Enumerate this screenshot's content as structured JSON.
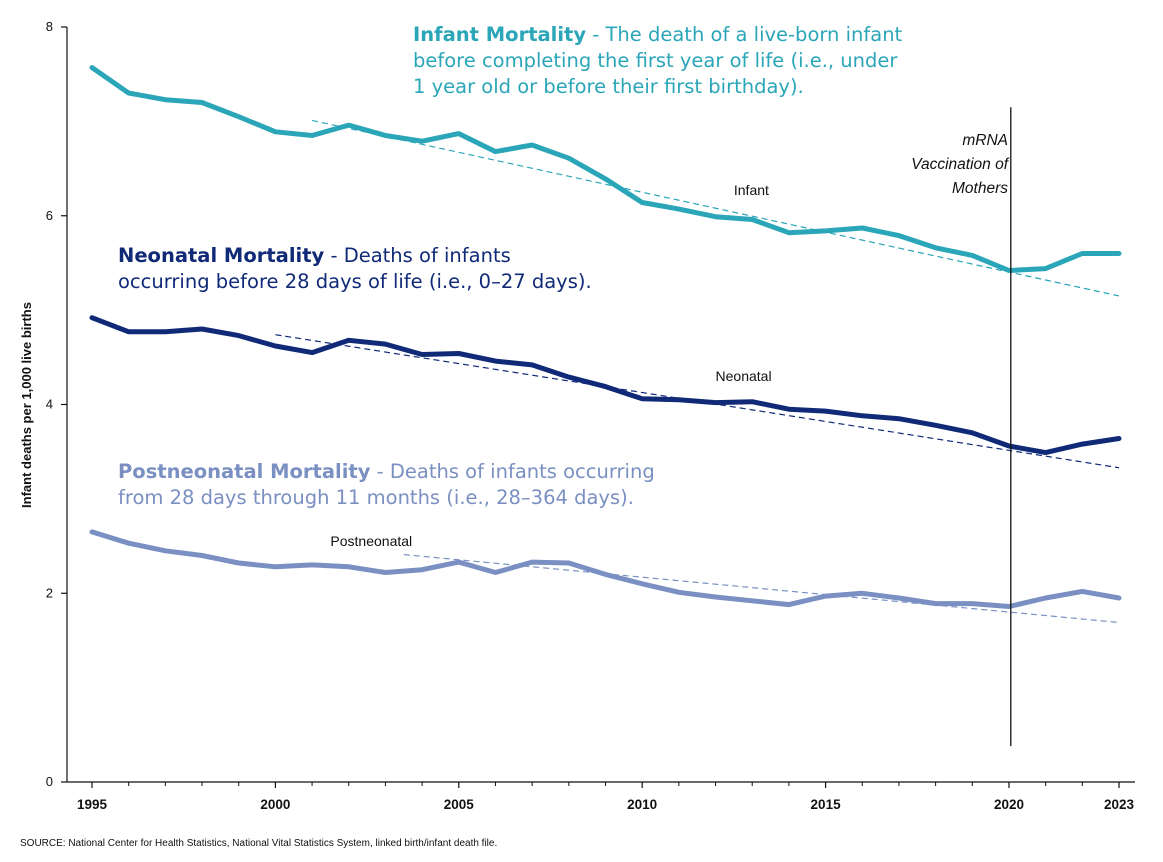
{
  "chart_data": {
    "type": "line",
    "ylabel": "Infant deaths per 1,000 live births",
    "xlabel": "",
    "xlim": [
      1995,
      2023
    ],
    "ylim": [
      0,
      8
    ],
    "x_ticks": [
      1995,
      2000,
      2005,
      2010,
      2015,
      2020,
      2023
    ],
    "y_ticks": [
      0,
      2,
      4,
      6,
      8
    ],
    "x": [
      1995,
      1996,
      1997,
      1998,
      1999,
      2000,
      2001,
      2002,
      2003,
      2004,
      2005,
      2006,
      2007,
      2008,
      2009,
      2010,
      2011,
      2012,
      2013,
      2014,
      2015,
      2016,
      2017,
      2018,
      2019,
      2020,
      2021,
      2022,
      2023
    ],
    "series": [
      {
        "name": "Infant",
        "color": "#2aa6b8",
        "values": [
          7.57,
          7.3,
          7.23,
          7.2,
          7.05,
          6.89,
          6.85,
          6.96,
          6.85,
          6.79,
          6.87,
          6.68,
          6.75,
          6.61,
          6.39,
          6.14,
          6.07,
          5.99,
          5.96,
          5.82,
          5.84,
          5.87,
          5.79,
          5.66,
          5.58,
          5.42,
          5.44,
          5.6,
          5.6
        ],
        "trend": {
          "start": [
            2001,
            7.01
          ],
          "end": [
            2023,
            5.15
          ]
        },
        "label": "Infant",
        "label_at": [
          2012.5,
          6.22
        ]
      },
      {
        "name": "Neonatal",
        "color": "#102a78",
        "values": [
          4.92,
          4.77,
          4.77,
          4.8,
          4.73,
          4.62,
          4.55,
          4.68,
          4.64,
          4.53,
          4.54,
          4.46,
          4.42,
          4.29,
          4.19,
          4.06,
          4.05,
          4.02,
          4.03,
          3.95,
          3.93,
          3.88,
          3.85,
          3.78,
          3.7,
          3.56,
          3.49,
          3.58,
          3.64
        ],
        "trend": {
          "start": [
            2000,
            4.74
          ],
          "end": [
            2023,
            3.33
          ]
        },
        "label": "Neonatal",
        "label_at": [
          2012.0,
          4.25
        ]
      },
      {
        "name": "Postneonatal",
        "color": "#7a8fc2",
        "values": [
          2.65,
          2.53,
          2.45,
          2.4,
          2.32,
          2.28,
          2.3,
          2.28,
          2.22,
          2.25,
          2.33,
          2.22,
          2.33,
          2.32,
          2.2,
          2.1,
          2.01,
          1.96,
          1.92,
          1.88,
          1.97,
          2.0,
          1.95,
          1.89,
          1.89,
          1.86,
          1.95,
          2.02,
          1.95
        ],
        "trend": {
          "start": [
            2003.5,
            2.41
          ],
          "end": [
            2023,
            1.69
          ]
        },
        "label": "Postneonatal",
        "label_at": [
          2001.5,
          2.5
        ]
      }
    ],
    "vline": {
      "x": 2020.05,
      "y_top": 7.15,
      "y_bottom": 0.38
    }
  },
  "annotations": {
    "infant": {
      "term": "Infant Mortality",
      "separator": " - ",
      "lines": [
        "The death of a live-born infant",
        "before completing the first year of life (i.e., under",
        "1 year old or before their first birthday)."
      ]
    },
    "neonatal": {
      "term": "Neonatal Mortality",
      "separator": " - ",
      "lines": [
        "Deaths of infants",
        "occurring before 28 days of life (i.e., 0–27 days)."
      ]
    },
    "postneonatal": {
      "term": "Postneonatal Mortality",
      "separator": " - ",
      "lines": [
        "Deaths of infants occurring",
        "from 28 days through 11 months (i.e., 28–364 days)."
      ]
    }
  },
  "mrna": {
    "line1": "mRNA",
    "line2": "Vaccination of",
    "line3": "Mothers"
  },
  "source": "SOURCE: National Center for Health Statistics, National Vital Statistics System, linked birth/infant death file."
}
